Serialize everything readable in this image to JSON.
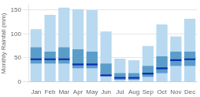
{
  "chart_data": {
    "type": "bar",
    "ylabel": "Monthly Rainfall (mm)",
    "categories": [
      "Jan",
      "Feb",
      "Mar",
      "Apr",
      "May",
      "Jun",
      "Jul",
      "Aug",
      "Sep",
      "Oct",
      "Nov",
      "Dec"
    ],
    "series": [
      {
        "type": "bar",
        "color": "#b8d9f0",
        "low": [
          0,
          0,
          0,
          0,
          0,
          0,
          0,
          0,
          0,
          0,
          0,
          0
        ],
        "high": [
          110,
          140,
          155,
          152,
          150,
          105,
          48,
          45,
          75,
          120,
          95,
          132
        ]
      },
      {
        "type": "bar",
        "color": "#5b9dc9",
        "low": [
          38,
          38,
          38,
          28,
          28,
          12,
          4,
          4,
          10,
          18,
          33,
          33
        ],
        "high": [
          72,
          63,
          72,
          68,
          63,
          38,
          18,
          18,
          33,
          53,
          63,
          63
        ]
      },
      {
        "type": "line",
        "marker": "line",
        "line_style": "none",
        "color": "#0a2db5",
        "values": [
          47,
          47,
          47,
          36,
          36,
          13,
          8,
          8,
          17,
          28,
          45,
          47
        ]
      }
    ],
    "ylim": [
      0,
      160
    ],
    "yticks": [
      0,
      50,
      100,
      150
    ],
    "grid": true
  }
}
